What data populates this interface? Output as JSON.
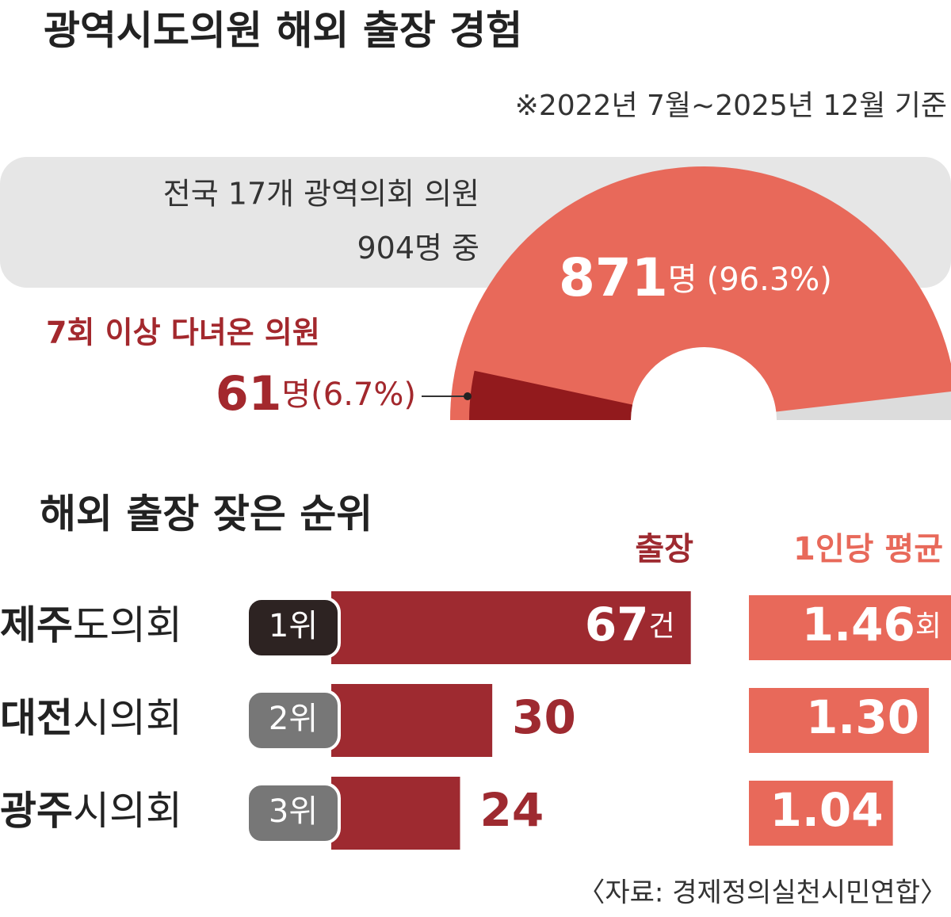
{
  "chart_data": [
    {
      "type": "half-donut",
      "title": "광역시도의원 해외 출장 경험",
      "subtitle": "※2022년 7월~2025년 12월 기준",
      "total_label": "전국 17개 광역의회 의원",
      "total": 904,
      "total_suffix": "명 중",
      "values": [
        871,
        61
      ],
      "unit": "명",
      "percent_labels": [
        "(96.3%)",
        "(6.7%)"
      ],
      "annotation": "7회 이상 다녀온 의원",
      "colors": [
        "#e8695a",
        "#921a1d"
      ]
    },
    {
      "type": "ranked-bar",
      "title": "해외 출장 잦은 순위",
      "categories": [
        [
          "제주",
          "도의회"
        ],
        [
          "대전",
          "시의회"
        ],
        [
          "광주",
          "시의회"
        ]
      ],
      "ranks": [
        "1위",
        "2위",
        "3위"
      ],
      "series": [
        {
          "name": "출장",
          "values": [
            67,
            30,
            24
          ],
          "unit": "건",
          "color": "#9e2a30",
          "xlim": [
            0,
            70
          ]
        },
        {
          "name": "1인당 평균",
          "values": [
            1.46,
            1.3,
            1.04
          ],
          "value_labels": [
            "1.46",
            "1.30",
            "1.04"
          ],
          "unit": "회",
          "color": "#e8695a",
          "xlim": [
            0,
            1.5
          ]
        }
      ],
      "source": "〈자료: 경제정의실천시민연합〉"
    }
  ]
}
